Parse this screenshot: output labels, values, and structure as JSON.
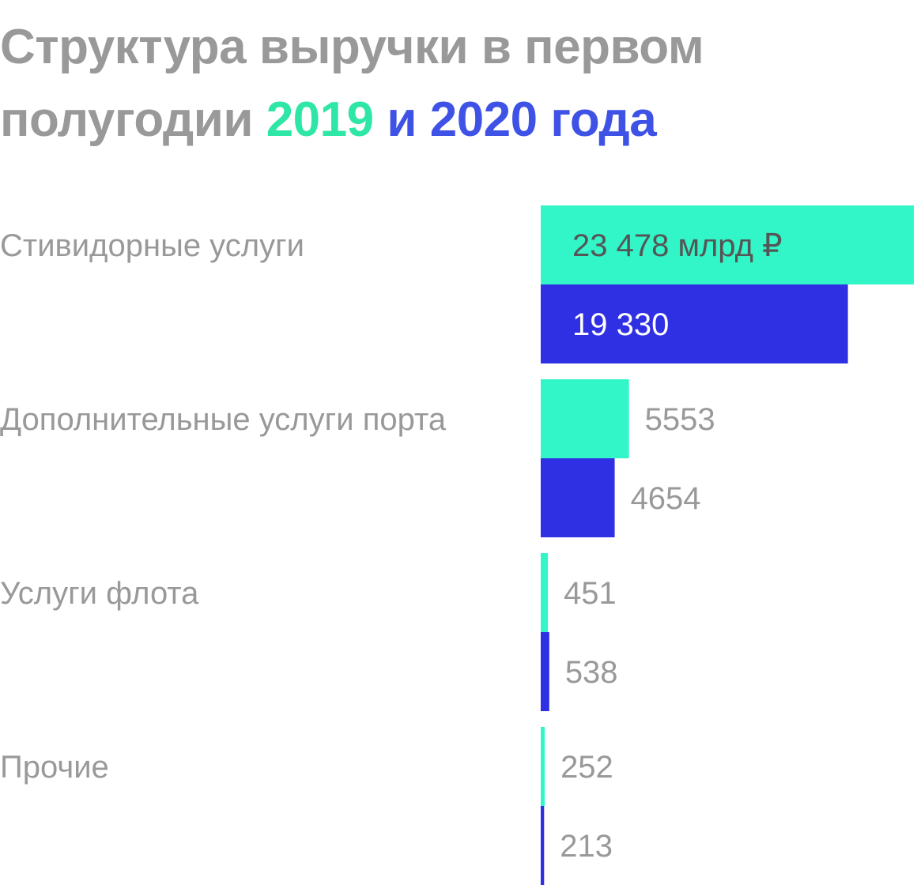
{
  "title": {
    "line1": "Структура выручки в первом",
    "line2_prefix": "полугодии ",
    "year1": "2019",
    "connector": " и ",
    "year2": "2020 года"
  },
  "colors": {
    "series_2019": "#32f5c8",
    "series_2020": "#2f2fe3",
    "title_year1": "#2ee6a6",
    "title_year2": "#3f52e6",
    "text": "#999999"
  },
  "chart_data": {
    "type": "bar",
    "orientation": "horizontal",
    "categories": [
      "Стивидорные услуги",
      "Дополнительные услуги порта",
      "Услуги флота",
      "Прочие"
    ],
    "unit": "млрд ₽",
    "series": [
      {
        "name": "2019",
        "values": [
          23478,
          5553,
          451,
          252
        ],
        "labels": [
          "23 478 млрд ₽",
          "5553",
          "451",
          "252"
        ]
      },
      {
        "name": "2020",
        "values": [
          19330,
          4654,
          538,
          213
        ],
        "labels": [
          "19 330",
          "4654",
          "538",
          "213"
        ]
      }
    ],
    "xlim": [
      0,
      23478
    ],
    "grid": false
  }
}
